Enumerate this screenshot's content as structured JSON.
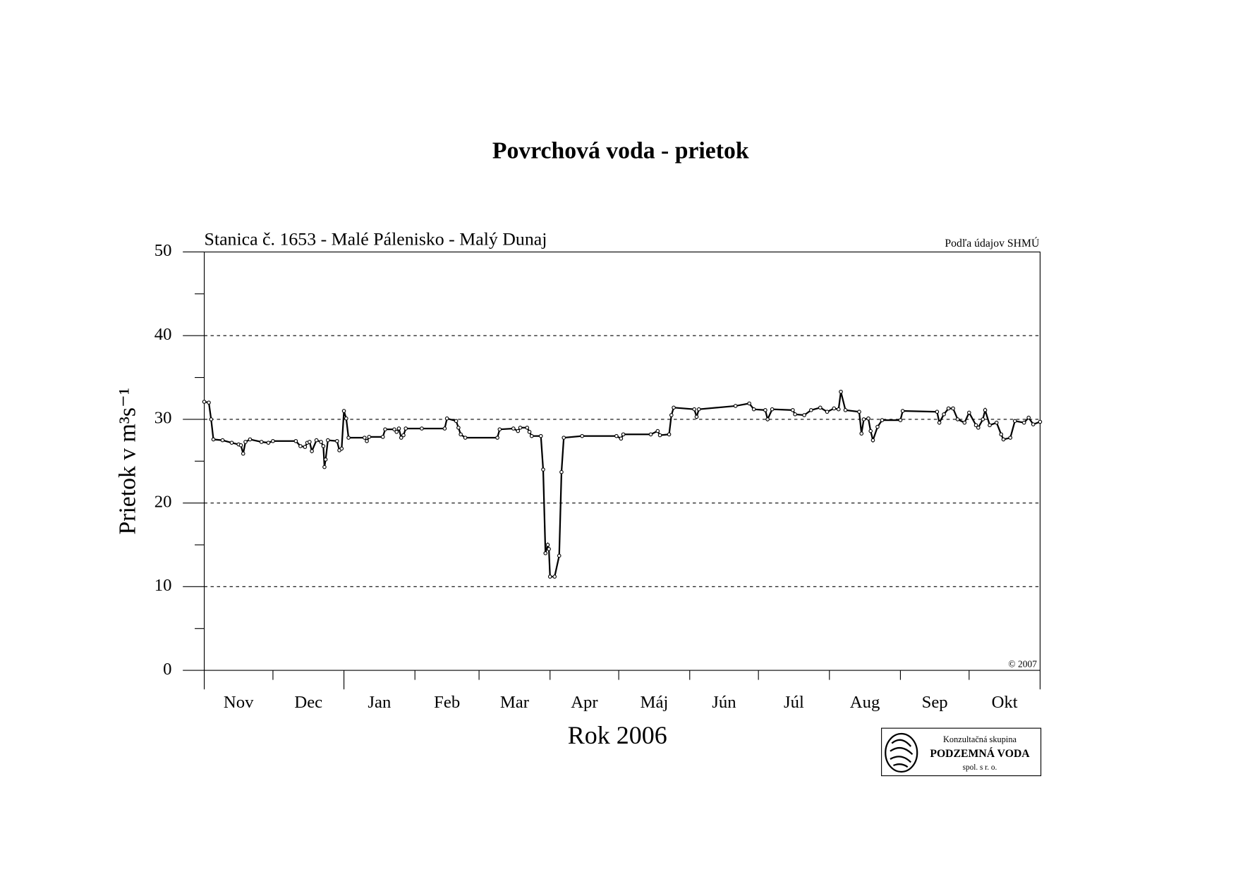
{
  "chart_data": {
    "type": "line",
    "title": "Povrchová voda - prietok",
    "subtitle": "Stanica č. 1653 - Malé Pálenisko - Malý Dunaj",
    "source": "Podľa údajov SHMÚ",
    "copyright": "© 2007",
    "y_label": "Prietok v m³s⁻¹",
    "x_label": "Rok 2006",
    "logo": {
      "top": "Konzultačná skupina",
      "name": "PODZEMNÁ VODA",
      "bottom": "spol. s r. o."
    },
    "categories": [
      "Nov",
      "Dec",
      "Jan",
      "Feb",
      "Mar",
      "Apr",
      "Máj",
      "Jún",
      "Júl",
      "Aug",
      "Sep",
      "Okt"
    ],
    "xlim": [
      0,
      365
    ],
    "xticks": [
      0,
      30,
      61,
      92,
      120,
      151,
      181,
      212,
      242,
      273,
      304,
      334,
      365
    ],
    "ylim": [
      0,
      50
    ],
    "yticks": [
      0,
      10,
      20,
      30,
      40,
      50
    ],
    "y_minor_ticks": [
      5,
      15,
      25,
      35,
      45
    ],
    "grid": true,
    "series": [
      {
        "color": "#000000",
        "x": [
          0,
          2,
          3,
          4,
          8,
          12,
          15,
          16,
          17,
          18,
          20,
          25,
          28,
          30,
          40,
          42,
          44,
          45,
          46,
          47,
          49,
          51,
          52,
          52.5,
          53,
          54,
          58,
          59,
          60,
          61,
          62,
          63,
          70,
          71,
          72,
          78,
          79,
          83,
          84,
          85,
          86,
          87,
          88,
          95,
          105,
          106,
          110,
          111,
          112,
          114,
          128,
          129,
          135,
          137,
          138,
          141,
          142,
          143,
          147,
          148,
          149,
          150,
          150.5,
          151,
          153,
          155,
          156,
          157,
          165,
          180,
          182,
          183,
          195,
          198,
          199,
          203,
          204,
          205,
          214,
          215,
          216,
          232,
          238,
          240,
          245,
          246,
          248,
          257,
          258,
          262,
          265,
          269,
          272,
          275,
          277,
          278,
          280,
          286,
          287,
          288,
          290,
          291,
          292,
          294,
          296,
          304,
          305,
          320,
          321,
          323,
          325,
          327,
          329,
          332,
          334,
          337,
          338,
          340,
          341,
          343,
          346,
          348,
          349,
          352,
          354,
          358,
          360,
          362,
          365
        ],
        "values": [
          32.1,
          32.0,
          30.0,
          27.6,
          27.5,
          27.2,
          27.0,
          26.9,
          25.9,
          27.3,
          27.6,
          27.3,
          27.2,
          27.4,
          27.4,
          26.8,
          26.7,
          27.2,
          27.3,
          26.2,
          27.5,
          27.3,
          26.8,
          24.3,
          25.2,
          27.5,
          27.4,
          26.3,
          26.5,
          31.0,
          30.1,
          27.8,
          27.8,
          27.4,
          27.9,
          27.9,
          28.8,
          28.8,
          28.5,
          28.9,
          27.8,
          28.1,
          28.9,
          28.9,
          28.9,
          30.1,
          29.8,
          29.0,
          28.2,
          27.8,
          27.8,
          28.8,
          28.9,
          28.6,
          29.0,
          29.0,
          28.5,
          28.0,
          28.0,
          24.0,
          14.0,
          15.0,
          14.5,
          11.2,
          11.2,
          13.7,
          23.7,
          27.8,
          28.0,
          28.0,
          27.7,
          28.2,
          28.2,
          28.6,
          28.1,
          28.2,
          30.5,
          31.4,
          31.2,
          30.3,
          31.2,
          31.6,
          31.9,
          31.2,
          31.1,
          30.0,
          31.2,
          31.1,
          30.6,
          30.5,
          31.1,
          31.4,
          30.9,
          31.3,
          31.2,
          33.3,
          31.1,
          30.9,
          28.3,
          30.0,
          30.1,
          28.6,
          27.5,
          29.1,
          29.9,
          29.9,
          31.0,
          30.9,
          29.6,
          30.6,
          31.3,
          31.3,
          30.0,
          29.6,
          30.8,
          29.3,
          29.0,
          30.0,
          31.1,
          29.3,
          29.6,
          28.2,
          27.6,
          27.8,
          29.8,
          29.6,
          30.2,
          29.4,
          29.7
        ]
      }
    ]
  }
}
